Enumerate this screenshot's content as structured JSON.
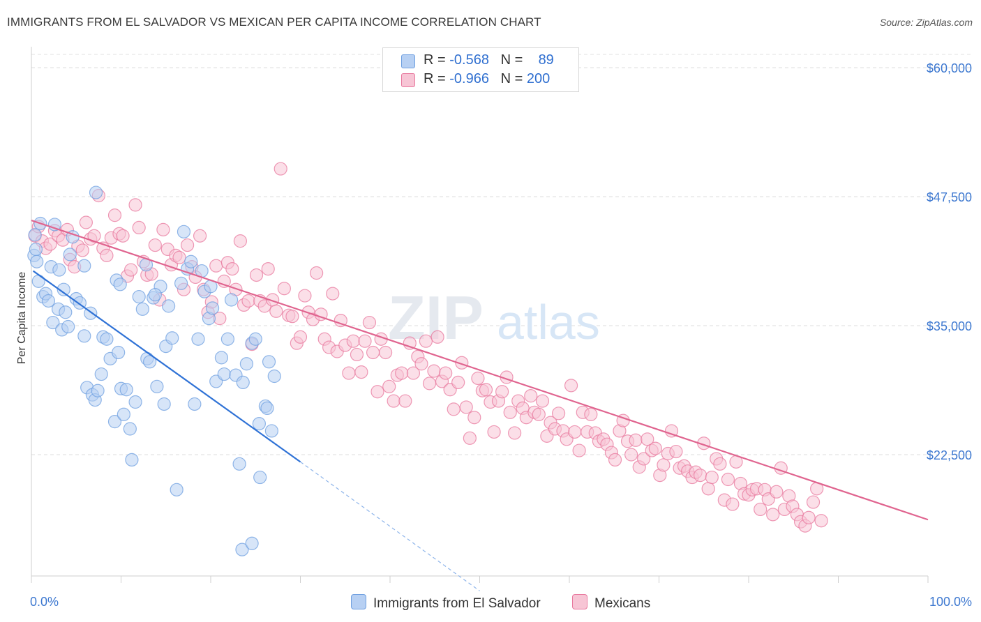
{
  "title": "IMMIGRANTS FROM EL SALVADOR VS MEXICAN PER CAPITA INCOME CORRELATION CHART",
  "source": "Source: ZipAtlas.com",
  "watermark": {
    "zip": "ZIP",
    "atlas": "atlas"
  },
  "legend": {
    "series1": {
      "r_label": "R =",
      "r_value": "-0.568",
      "n_label": "N =",
      "n_value": "89",
      "color": "#a9c8f0"
    },
    "series2": {
      "r_label": "R =",
      "r_value": "-0.966",
      "n_label": "N =",
      "n_value": "200",
      "color": "#f7b8cc"
    }
  },
  "bottom_legend": {
    "series1": "Immigrants from El Salvador",
    "series2": "Mexicans"
  },
  "chart_data": {
    "type": "scatter",
    "xlabel": "",
    "ylabel": "Per Capita Income",
    "xlim": [
      0,
      100
    ],
    "ylim": [
      12500,
      61000
    ],
    "x_tick_labels": [
      "0.0%",
      "100.0%"
    ],
    "y_ticks": [
      22500,
      35000,
      47500,
      60000
    ],
    "y_tick_labels": [
      "$22,500",
      "$35,000",
      "$47,500",
      "$60,000"
    ],
    "grid": true,
    "series": [
      {
        "name": "Immigrants from El Salvador",
        "color": "#6e9fe0",
        "fill": "#b7d0f3",
        "trend": {
          "x0": 0.2,
          "y0": 40300,
          "x1": 30,
          "y1": 21800,
          "x_dash_end": 50,
          "y_dash_end": 9300
        },
        "points": [
          [
            0.3,
            41800
          ],
          [
            0.5,
            42400
          ],
          [
            0.4,
            43800
          ],
          [
            0.6,
            41200
          ],
          [
            1.0,
            44900
          ],
          [
            0.8,
            39300
          ],
          [
            1.3,
            37800
          ],
          [
            1.6,
            38100
          ],
          [
            1.9,
            37400
          ],
          [
            2.2,
            40700
          ],
          [
            2.4,
            35300
          ],
          [
            2.6,
            44800
          ],
          [
            3.0,
            36600
          ],
          [
            3.4,
            34600
          ],
          [
            3.6,
            38500
          ],
          [
            3.8,
            36300
          ],
          [
            4.1,
            34900
          ],
          [
            4.3,
            41900
          ],
          [
            4.6,
            43600
          ],
          [
            5.0,
            37600
          ],
          [
            5.4,
            37200
          ],
          [
            5.9,
            34000
          ],
          [
            6.2,
            29000
          ],
          [
            6.6,
            36200
          ],
          [
            6.8,
            28300
          ],
          [
            7.1,
            27800
          ],
          [
            7.4,
            28700
          ],
          [
            8.0,
            33900
          ],
          [
            7.8,
            30300
          ],
          [
            8.4,
            33700
          ],
          [
            8.8,
            31800
          ],
          [
            9.3,
            25700
          ],
          [
            9.7,
            32400
          ],
          [
            10.0,
            28900
          ],
          [
            10.3,
            26400
          ],
          [
            10.6,
            28800
          ],
          [
            11.0,
            25000
          ],
          [
            11.2,
            22000
          ],
          [
            11.6,
            27600
          ],
          [
            12.0,
            37800
          ],
          [
            12.4,
            36600
          ],
          [
            12.9,
            31800
          ],
          [
            13.2,
            31500
          ],
          [
            13.6,
            37700
          ],
          [
            14.0,
            29100
          ],
          [
            14.4,
            38800
          ],
          [
            14.8,
            27400
          ],
          [
            15.0,
            33000
          ],
          [
            15.3,
            36900
          ],
          [
            15.7,
            33800
          ],
          [
            16.2,
            19100
          ],
          [
            16.7,
            39100
          ],
          [
            17.0,
            44100
          ],
          [
            17.4,
            40500
          ],
          [
            17.8,
            41200
          ],
          [
            18.2,
            27400
          ],
          [
            18.6,
            33700
          ],
          [
            19.0,
            40300
          ],
          [
            19.3,
            38300
          ],
          [
            19.8,
            35700
          ],
          [
            20.2,
            36700
          ],
          [
            20.6,
            29600
          ],
          [
            21.2,
            31900
          ],
          [
            21.5,
            30300
          ],
          [
            21.9,
            33700
          ],
          [
            22.3,
            37500
          ],
          [
            22.8,
            30200
          ],
          [
            23.2,
            21600
          ],
          [
            23.6,
            29500
          ],
          [
            24.0,
            31300
          ],
          [
            24.6,
            33300
          ],
          [
            25.0,
            33700
          ],
          [
            25.4,
            25500
          ],
          [
            26.1,
            27200
          ],
          [
            26.5,
            31500
          ],
          [
            27.1,
            30100
          ],
          [
            3.1,
            40400
          ],
          [
            5.9,
            40800
          ],
          [
            9.5,
            39400
          ],
          [
            13.8,
            38000
          ],
          [
            9.9,
            39000
          ],
          [
            12.8,
            40900
          ],
          [
            7.2,
            47900
          ],
          [
            20.0,
            38800
          ],
          [
            26.8,
            24800
          ],
          [
            26.3,
            27000
          ],
          [
            25.5,
            20300
          ],
          [
            23.5,
            13300
          ],
          [
            24.6,
            13900
          ]
        ]
      },
      {
        "name": "Mexicans",
        "color": "#e8789e",
        "fill": "#f7c5d5",
        "trend": {
          "x0": 0,
          "y0": 45200,
          "x1": 100,
          "y1": 16200
        },
        "points": [
          [
            0.4,
            43700
          ],
          [
            0.8,
            44600
          ],
          [
            1.2,
            43200
          ],
          [
            1.6,
            42500
          ],
          [
            2.1,
            42900
          ],
          [
            2.6,
            44200
          ],
          [
            3.0,
            43700
          ],
          [
            3.5,
            43300
          ],
          [
            4.0,
            44300
          ],
          [
            4.3,
            41400
          ],
          [
            4.8,
            40700
          ],
          [
            5.2,
            42700
          ],
          [
            5.7,
            42300
          ],
          [
            6.1,
            45000
          ],
          [
            6.6,
            43400
          ],
          [
            7.0,
            43700
          ],
          [
            7.5,
            47600
          ],
          [
            8.0,
            42500
          ],
          [
            8.4,
            41800
          ],
          [
            8.9,
            43500
          ],
          [
            9.3,
            45700
          ],
          [
            9.8,
            43900
          ],
          [
            10.2,
            43700
          ],
          [
            10.7,
            39800
          ],
          [
            11.1,
            40400
          ],
          [
            11.6,
            46700
          ],
          [
            12.0,
            44500
          ],
          [
            12.5,
            41200
          ],
          [
            12.9,
            39900
          ],
          [
            13.4,
            40000
          ],
          [
            13.8,
            42800
          ],
          [
            14.3,
            37500
          ],
          [
            14.7,
            44300
          ],
          [
            15.2,
            42400
          ],
          [
            15.6,
            40900
          ],
          [
            16.1,
            41800
          ],
          [
            16.5,
            41600
          ],
          [
            17.0,
            38500
          ],
          [
            17.4,
            42800
          ],
          [
            17.9,
            40700
          ],
          [
            18.3,
            39700
          ],
          [
            18.8,
            43700
          ],
          [
            19.2,
            38500
          ],
          [
            19.7,
            36300
          ],
          [
            20.1,
            37300
          ],
          [
            20.6,
            40800
          ],
          [
            21.0,
            35700
          ],
          [
            21.5,
            39300
          ],
          [
            21.9,
            41100
          ],
          [
            22.4,
            40500
          ],
          [
            22.8,
            38500
          ],
          [
            23.3,
            43200
          ],
          [
            23.7,
            37000
          ],
          [
            24.2,
            37400
          ],
          [
            24.6,
            33200
          ],
          [
            25.1,
            39900
          ],
          [
            25.5,
            37400
          ],
          [
            26.0,
            36900
          ],
          [
            26.4,
            40500
          ],
          [
            26.9,
            37500
          ],
          [
            27.3,
            36400
          ],
          [
            27.8,
            50200
          ],
          [
            28.2,
            38600
          ],
          [
            28.7,
            36000
          ],
          [
            29.1,
            35900
          ],
          [
            29.6,
            33300
          ],
          [
            30.0,
            33900
          ],
          [
            30.5,
            37900
          ],
          [
            30.9,
            36300
          ],
          [
            31.4,
            35600
          ],
          [
            31.8,
            40100
          ],
          [
            32.3,
            36100
          ],
          [
            32.7,
            33700
          ],
          [
            33.2,
            32900
          ],
          [
            33.6,
            38100
          ],
          [
            34.1,
            32500
          ],
          [
            34.5,
            35500
          ],
          [
            35.0,
            33100
          ],
          [
            35.4,
            30400
          ],
          [
            35.9,
            33500
          ],
          [
            36.3,
            32200
          ],
          [
            36.8,
            30500
          ],
          [
            37.2,
            33500
          ],
          [
            37.7,
            35300
          ],
          [
            38.1,
            32400
          ],
          [
            38.6,
            28600
          ],
          [
            39.0,
            33700
          ],
          [
            39.5,
            32400
          ],
          [
            39.9,
            29100
          ],
          [
            40.4,
            27700
          ],
          [
            40.8,
            30200
          ],
          [
            41.3,
            30400
          ],
          [
            41.7,
            27700
          ],
          [
            42.2,
            33300
          ],
          [
            42.6,
            30400
          ],
          [
            43.1,
            32000
          ],
          [
            43.5,
            31300
          ],
          [
            44.0,
            33500
          ],
          [
            44.4,
            29400
          ],
          [
            44.9,
            30600
          ],
          [
            45.3,
            33900
          ],
          [
            45.8,
            29600
          ],
          [
            46.2,
            30400
          ],
          [
            46.7,
            28800
          ],
          [
            47.1,
            26900
          ],
          [
            47.6,
            29500
          ],
          [
            48.0,
            31400
          ],
          [
            48.5,
            27100
          ],
          [
            48.9,
            24100
          ],
          [
            49.4,
            26100
          ],
          [
            49.8,
            29900
          ],
          [
            50.3,
            28700
          ],
          [
            50.7,
            28800
          ],
          [
            51.2,
            27600
          ],
          [
            51.6,
            24700
          ],
          [
            52.1,
            27700
          ],
          [
            52.5,
            28600
          ],
          [
            53.0,
            30000
          ],
          [
            53.4,
            26600
          ],
          [
            53.9,
            24600
          ],
          [
            54.3,
            27700
          ],
          [
            54.8,
            27000
          ],
          [
            55.2,
            26100
          ],
          [
            55.7,
            28200
          ],
          [
            56.1,
            26600
          ],
          [
            56.6,
            26400
          ],
          [
            57.0,
            27700
          ],
          [
            57.5,
            24300
          ],
          [
            57.9,
            25600
          ],
          [
            58.4,
            25000
          ],
          [
            58.8,
            26500
          ],
          [
            59.3,
            24800
          ],
          [
            59.7,
            24000
          ],
          [
            60.2,
            29200
          ],
          [
            60.6,
            24700
          ],
          [
            61.1,
            22900
          ],
          [
            61.5,
            26600
          ],
          [
            62.0,
            24700
          ],
          [
            62.4,
            26400
          ],
          [
            62.9,
            24600
          ],
          [
            63.3,
            23800
          ],
          [
            63.8,
            24000
          ],
          [
            64.2,
            23500
          ],
          [
            64.7,
            22700
          ],
          [
            65.1,
            22000
          ],
          [
            65.6,
            24800
          ],
          [
            66.0,
            25800
          ],
          [
            66.5,
            23800
          ],
          [
            66.9,
            22500
          ],
          [
            67.4,
            23900
          ],
          [
            67.8,
            21300
          ],
          [
            68.3,
            22100
          ],
          [
            68.7,
            24000
          ],
          [
            69.2,
            22900
          ],
          [
            69.6,
            23100
          ],
          [
            70.1,
            20500
          ],
          [
            70.5,
            21500
          ],
          [
            71.0,
            22600
          ],
          [
            71.4,
            24800
          ],
          [
            71.9,
            22800
          ],
          [
            72.3,
            21200
          ],
          [
            72.8,
            21400
          ],
          [
            73.2,
            20900
          ],
          [
            73.7,
            20300
          ],
          [
            74.1,
            20800
          ],
          [
            74.6,
            20500
          ],
          [
            75.0,
            23600
          ],
          [
            75.5,
            19200
          ],
          [
            75.9,
            20300
          ],
          [
            76.4,
            22100
          ],
          [
            76.8,
            21600
          ],
          [
            77.3,
            18100
          ],
          [
            77.7,
            20100
          ],
          [
            78.2,
            17700
          ],
          [
            78.6,
            21800
          ],
          [
            79.1,
            19700
          ],
          [
            79.5,
            18700
          ],
          [
            80.0,
            18600
          ],
          [
            80.4,
            19100
          ],
          [
            80.9,
            19200
          ],
          [
            81.3,
            17200
          ],
          [
            81.8,
            19100
          ],
          [
            82.2,
            18200
          ],
          [
            82.7,
            16700
          ],
          [
            83.1,
            18900
          ],
          [
            83.6,
            21200
          ],
          [
            84.0,
            17200
          ],
          [
            84.5,
            18500
          ],
          [
            84.9,
            17500
          ],
          [
            85.4,
            16700
          ],
          [
            85.8,
            16000
          ],
          [
            86.3,
            15600
          ],
          [
            86.7,
            16400
          ],
          [
            87.2,
            17900
          ],
          [
            87.6,
            19200
          ],
          [
            88.1,
            16100
          ]
        ]
      }
    ]
  }
}
